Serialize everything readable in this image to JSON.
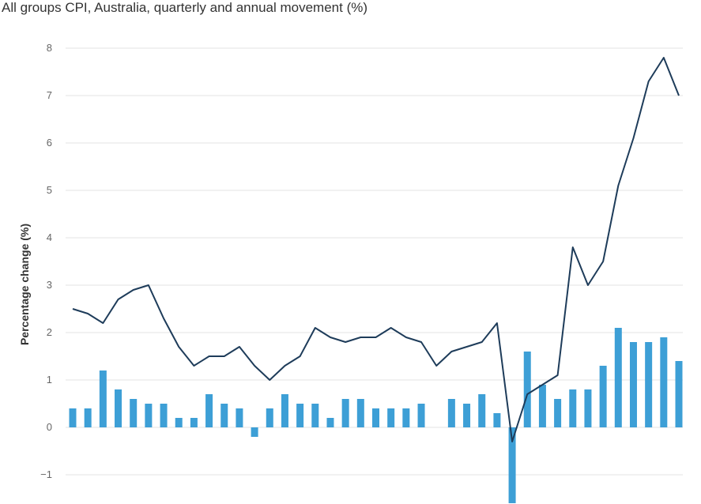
{
  "chart_data": {
    "type": "bar",
    "title": "All groups CPI, Australia, quarterly and annual movement (%)",
    "xlabel": "",
    "ylabel": "Percentage change (%)",
    "ylim": [
      -1.6,
      8
    ],
    "yticks": [
      8,
      7,
      6,
      5,
      4,
      3,
      2,
      1,
      0,
      -1
    ],
    "ytick_labels": [
      "8",
      "7",
      "6",
      "5",
      "4",
      "3",
      "2",
      "1",
      "0",
      "−1"
    ],
    "grid": true,
    "legend": "none",
    "colors": {
      "bars": "#3d9fd6",
      "line": "#1e3c5a",
      "grid": "#e3e3e3",
      "text": "#333333",
      "tick": "#666666"
    },
    "series": [
      {
        "type": "bar",
        "values": [
          0.4,
          0.4,
          1.2,
          0.8,
          0.6,
          0.5,
          0.5,
          0.2,
          0.2,
          0.7,
          0.5,
          0.4,
          -0.2,
          0.4,
          0.7,
          0.5,
          0.5,
          0.2,
          0.6,
          0.6,
          0.4,
          0.4,
          0.4,
          0.5,
          0.0,
          0.6,
          0.5,
          0.7,
          0.3,
          -1.6,
          1.6,
          0.9,
          0.6,
          0.8,
          0.8,
          1.3,
          2.1,
          1.8,
          1.8,
          1.9,
          1.4
        ]
      },
      {
        "type": "line",
        "values": [
          2.5,
          2.4,
          2.2,
          2.7,
          2.9,
          3.0,
          2.3,
          1.7,
          1.3,
          1.5,
          1.5,
          1.7,
          1.3,
          1.0,
          1.3,
          1.5,
          2.1,
          1.9,
          1.8,
          1.9,
          1.9,
          2.1,
          1.9,
          1.8,
          1.3,
          1.6,
          1.7,
          1.8,
          2.2,
          -0.3,
          0.7,
          0.9,
          1.1,
          3.8,
          3.0,
          3.5,
          5.1,
          6.1,
          7.3,
          7.8,
          7.0
        ]
      }
    ]
  }
}
